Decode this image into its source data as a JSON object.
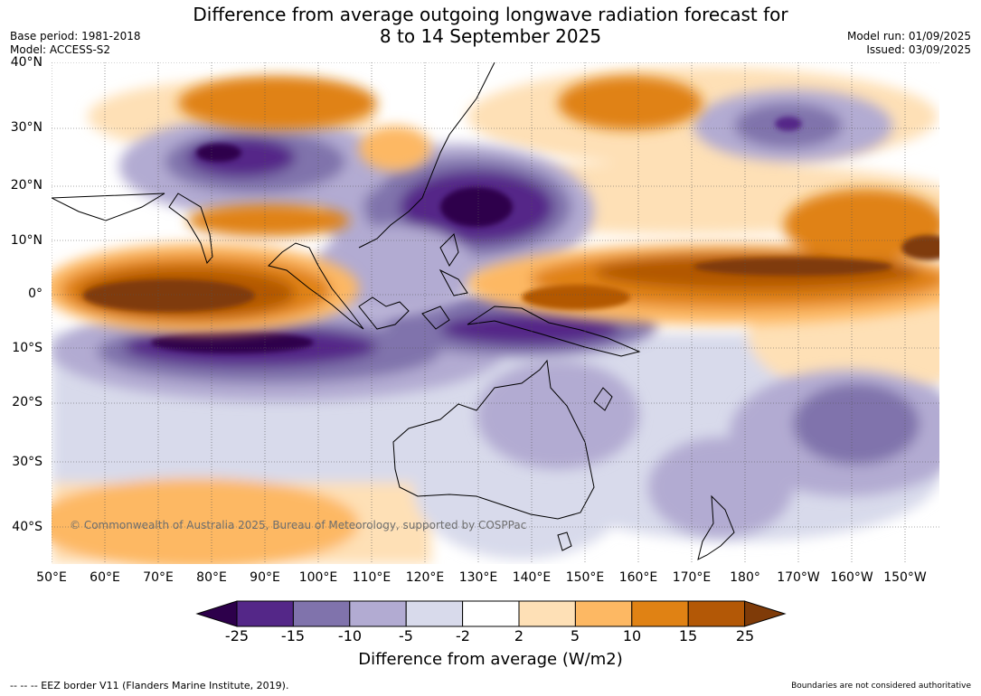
{
  "title": "Difference from average outgoing longwave radiation forecast for",
  "subtitle": "8 to 14 September 2025",
  "base_period": "Base period: 1981-2018",
  "model": "Model: ACCESS-S2",
  "model_run": "Model run: 01/09/2025",
  "issued": "Issued: 03/09/2025",
  "copyright": "© Commonwealth of Australia 2025, Bureau of Meteorology, supported by COSPPac",
  "axes": {
    "lat_labels": [
      "40°N",
      "30°N",
      "20°N",
      "10°N",
      "0°",
      "10°S",
      "20°S",
      "30°S",
      "40°S"
    ],
    "lon_labels": [
      "50°E",
      "60°E",
      "70°E",
      "80°E",
      "90°E",
      "100°E",
      "110°E",
      "120°E",
      "130°E",
      "140°E",
      "150°E",
      "160°E",
      "170°E",
      "180°",
      "170°W",
      "160°W",
      "150°W"
    ],
    "lat_range": [
      -46,
      40
    ],
    "lon_range": [
      50,
      216
    ]
  },
  "colorbar": {
    "title": "Difference from average (W/m2)",
    "ticks": [
      "-25",
      "-15",
      "-10",
      "-5",
      "-2",
      "2",
      "5",
      "10",
      "15",
      "25"
    ],
    "colors": [
      "#2d004b",
      "#542788",
      "#8073ac",
      "#b2abd2",
      "#d8daeb",
      "#ffffff",
      "#fee0b6",
      "#fdb863",
      "#e08214",
      "#b35806",
      "#7f3b08"
    ]
  },
  "eez_note": "--  --  -- EEZ border V11 (Flanders Marine Institute, 2019).",
  "disclaimer": "Boundaries are not considered authoritative"
}
